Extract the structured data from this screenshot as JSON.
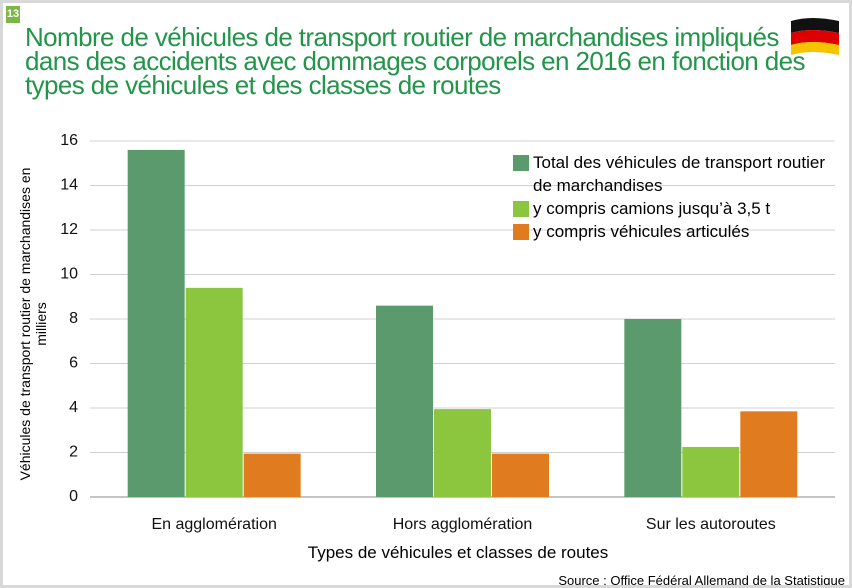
{
  "badge": "13",
  "chart_data": {
    "type": "bar",
    "title": "Nombre de véhicules de transport routier de marchandises impliqués dans des accidents avec dommages corporels en 2016 en fonction des types de véhicules et des classes de routes",
    "y_label": "Véhicules de transport routier de marchandises en milliers",
    "x_label": "Types de véhicules et classes de routes",
    "source": "Source : Office Fédéral Allemand de la Statistique",
    "categories": [
      "En agglomération",
      "Hors agglomération",
      "Sur les autoroutes"
    ],
    "series": [
      {
        "name": "Total des véhicules de transport routier de marchandises",
        "color": "#5b9a6c",
        "values": [
          15.6,
          8.6,
          8.0
        ]
      },
      {
        "name": "y compris camions jusqu’à 3,5 t",
        "color": "#8cc63f",
        "values": [
          9.4,
          3.95,
          2.25
        ]
      },
      {
        "name": "y compris véhicules articulés",
        "color": "#e07b1f",
        "values": [
          1.95,
          1.95,
          3.85
        ]
      }
    ],
    "ylim": [
      0,
      16
    ],
    "yticks": [
      0,
      2,
      4,
      6,
      8,
      10,
      12,
      14,
      16
    ],
    "grid": true,
    "legend": "upper right"
  }
}
